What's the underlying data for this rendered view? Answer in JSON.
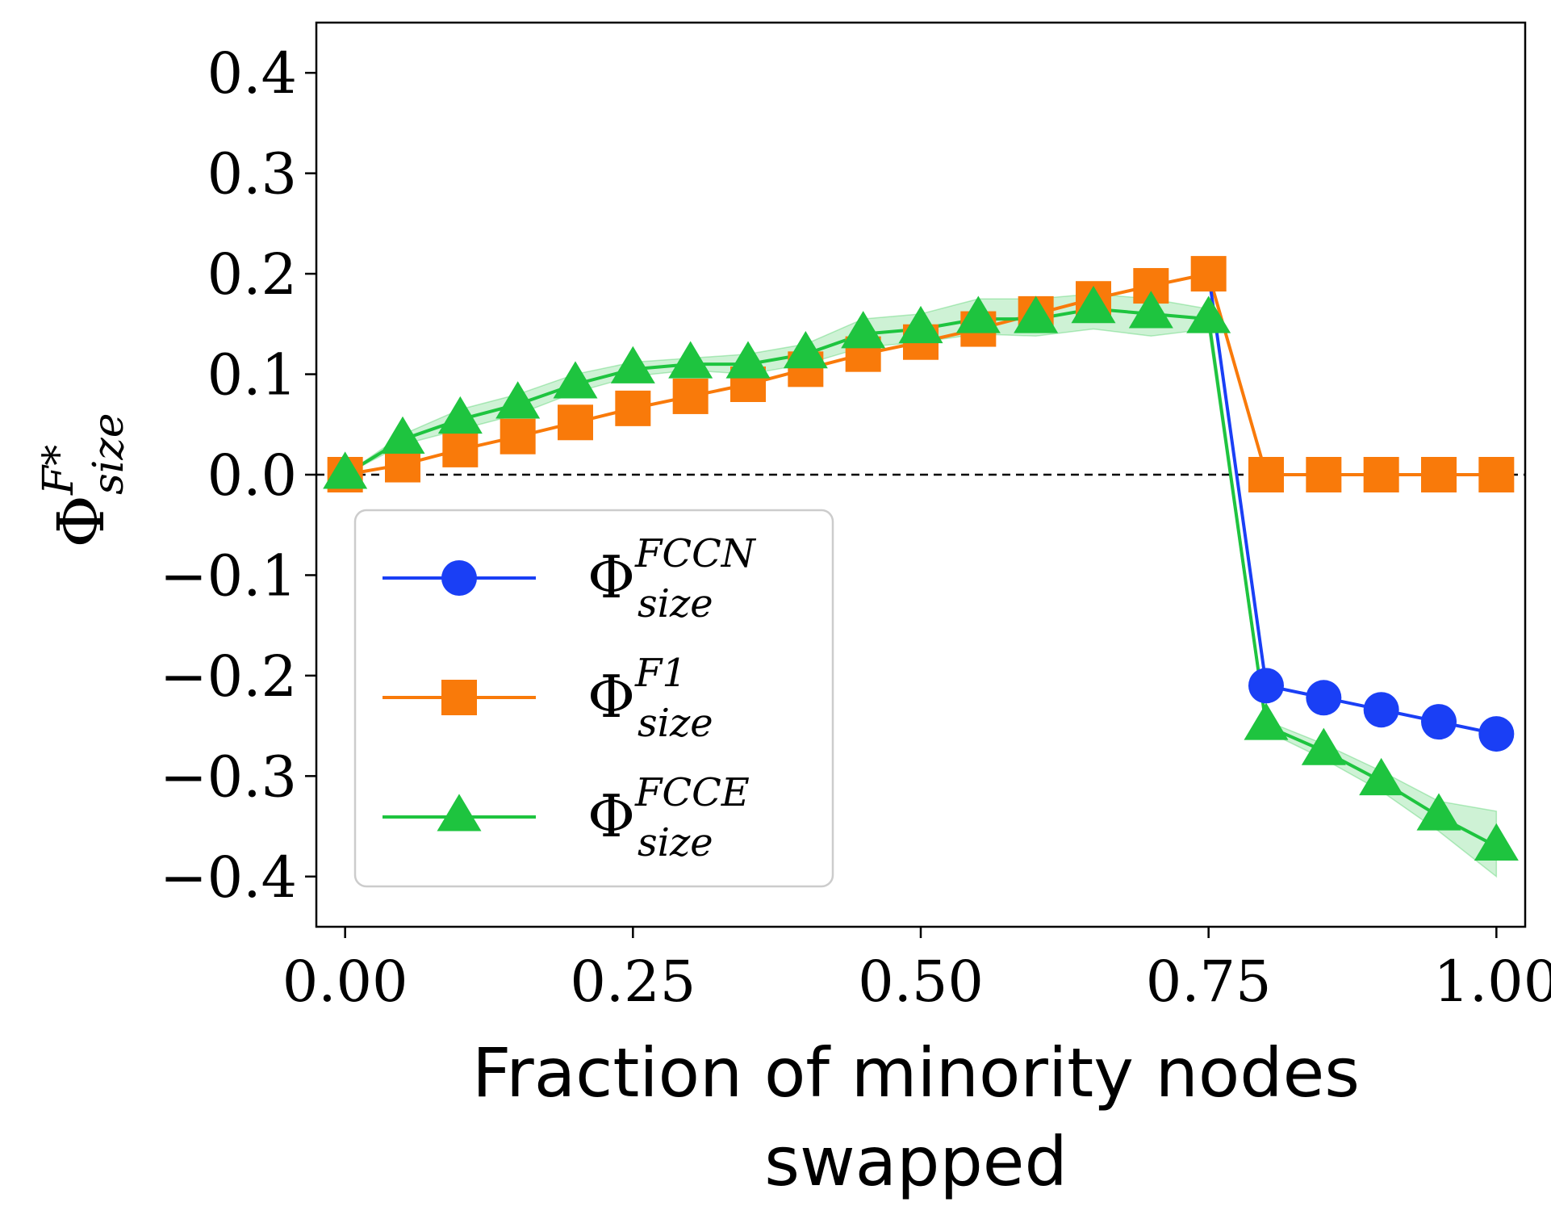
{
  "chart_data": {
    "type": "line",
    "xlabel_line1": "Fraction of minority nodes",
    "xlabel_line2": "swapped",
    "ylabel": {
      "base": "Φ",
      "sup": "F*",
      "sub": "size"
    },
    "xlim": [
      -0.025,
      1.025
    ],
    "ylim": [
      -0.45,
      0.45
    ],
    "xticks": [
      0.0,
      0.25,
      0.5,
      0.75,
      1.0
    ],
    "xtick_labels": [
      "0.00",
      "0.25",
      "0.50",
      "0.75",
      "1.00"
    ],
    "yticks": [
      0.4,
      0.3,
      0.2,
      0.1,
      0.0,
      -0.1,
      -0.2,
      -0.3,
      -0.4
    ],
    "ytick_labels": [
      "0.4",
      "0.3",
      "0.2",
      "0.1",
      "0.0",
      "−0.1",
      "−0.2",
      "−0.3",
      "−0.4"
    ],
    "reference_line": {
      "y": 0.0,
      "style": "dashed",
      "color": "#000000"
    },
    "legend_position": "lower-left",
    "x": [
      0.0,
      0.05,
      0.1,
      0.15,
      0.2,
      0.25,
      0.3,
      0.35,
      0.4,
      0.45,
      0.5,
      0.55,
      0.6,
      0.65,
      0.7,
      0.75,
      0.8,
      0.85,
      0.9,
      0.95,
      1.0
    ],
    "series": [
      {
        "name_base": "Φ",
        "name_sup": "FCCN",
        "name_sub": "size",
        "color": "#1a3ff5",
        "marker": "circle",
        "x": [
          0.8,
          0.85,
          0.9,
          0.95,
          1.0
        ],
        "values": [
          -0.21,
          -0.222,
          -0.234,
          -0.246,
          -0.258
        ],
        "line_x": [
          0.75,
          0.8,
          0.85,
          0.9,
          0.95,
          1.0
        ],
        "line_values": [
          0.2,
          -0.21,
          -0.222,
          -0.234,
          -0.246,
          -0.258
        ]
      },
      {
        "name_base": "Φ",
        "name_sup": "F1",
        "name_sub": "size",
        "color": "#f97a0a",
        "marker": "square",
        "values": [
          0.0,
          0.01,
          0.025,
          0.038,
          0.052,
          0.066,
          0.078,
          0.09,
          0.105,
          0.12,
          0.132,
          0.145,
          0.16,
          0.175,
          0.188,
          0.2,
          0.0,
          0.0,
          0.0,
          0.0,
          0.0
        ]
      },
      {
        "name_base": "Φ",
        "name_sup": "FCCE",
        "name_sub": "size",
        "color": "#1ec43f",
        "marker": "triangle",
        "values": [
          0.0,
          0.035,
          0.055,
          0.07,
          0.09,
          0.105,
          0.11,
          0.11,
          0.12,
          0.14,
          0.145,
          0.155,
          0.155,
          0.165,
          0.16,
          0.155,
          -0.25,
          -0.275,
          -0.305,
          -0.34,
          -0.37
        ],
        "band_upper": [
          0.0,
          0.04,
          0.065,
          0.08,
          0.1,
          0.112,
          0.116,
          0.12,
          0.13,
          0.155,
          0.16,
          0.175,
          0.175,
          0.18,
          0.175,
          0.165,
          -0.245,
          -0.268,
          -0.295,
          -0.325,
          -0.335
        ],
        "band_lower": [
          0.0,
          0.03,
          0.045,
          0.06,
          0.082,
          0.098,
          0.104,
          0.1,
          0.11,
          0.127,
          0.132,
          0.14,
          0.138,
          0.145,
          0.138,
          0.145,
          -0.255,
          -0.283,
          -0.315,
          -0.355,
          -0.4
        ]
      }
    ]
  }
}
